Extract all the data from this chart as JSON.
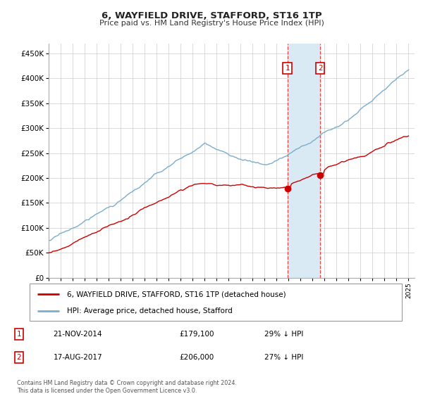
{
  "title": "6, WAYFIELD DRIVE, STAFFORD, ST16 1TP",
  "subtitle": "Price paid vs. HM Land Registry's House Price Index (HPI)",
  "ylabel_ticks": [
    "£0",
    "£50K",
    "£100K",
    "£150K",
    "£200K",
    "£250K",
    "£300K",
    "£350K",
    "£400K",
    "£450K"
  ],
  "ytick_values": [
    0,
    50000,
    100000,
    150000,
    200000,
    250000,
    300000,
    350000,
    400000,
    450000
  ],
  "ylim": [
    0,
    470000
  ],
  "xlim_start": 1995.0,
  "xlim_end": 2025.5,
  "sale1_t": 2014.9,
  "sale1_price": 179100,
  "sale2_t": 2017.63,
  "sale2_price": 206000,
  "legend_property": "6, WAYFIELD DRIVE, STAFFORD, ST16 1TP (detached house)",
  "legend_hpi": "HPI: Average price, detached house, Stafford",
  "footer": "Contains HM Land Registry data © Crown copyright and database right 2024.\nThis data is licensed under the Open Government Licence v3.0.",
  "property_color": "#cc0000",
  "hpi_color": "#7aadcc",
  "shaded_color": "#daeaf5",
  "vline_color": "#ee4444",
  "grid_color": "#cccccc",
  "background_color": "#ffffff"
}
